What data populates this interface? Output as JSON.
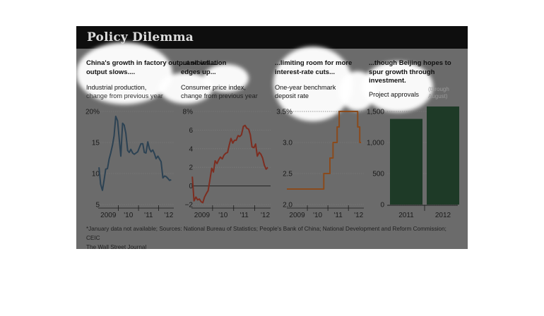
{
  "title": "Policy Dilemma",
  "source_note": "*January data not available; Sources: National Bureau of Statistics; People's Bank of China; National Development and Reform Commission; CEIC",
  "publisher": "The Wall Street Journal",
  "colors": {
    "panel_bg": "#6b6b6b",
    "title_bar": "#0e0e0e",
    "industrial_line": "#2c4253",
    "cpi_line": "#7d2d20",
    "rate_line": "#8a4a1c",
    "approvals_bar": "#1e3a27",
    "highlight": "#ffffff"
  },
  "chart_data": [
    {
      "type": "line",
      "heading": "China's growth in factory output slows....",
      "subtitle_line1": "Industrial production,",
      "subtitle_line2": "change from previous year",
      "ytick_labels": [
        "20%",
        "15",
        "10",
        "5"
      ],
      "yticks": [
        20,
        15,
        10,
        5
      ],
      "ylim": [
        5,
        20
      ],
      "xtick_labels": [
        "2009",
        "'10",
        "'11",
        "'12"
      ],
      "xtick_positions": [
        2009.5,
        2010.5,
        2011.5,
        2012.5
      ],
      "xlim": [
        2009,
        2012.75
      ],
      "grid": true,
      "series": [
        {
          "x": [
            2009.04,
            2009.12,
            2009.21,
            2009.29,
            2009.37,
            2009.46,
            2009.54,
            2009.62,
            2009.71,
            2009.79,
            2009.87,
            2009.96,
            2010.12,
            2010.21,
            2010.29,
            2010.37,
            2010.46,
            2010.54,
            2010.62,
            2010.71,
            2010.79,
            2010.87,
            2010.96,
            2011.12,
            2011.21,
            2011.29,
            2011.37,
            2011.46,
            2011.54,
            2011.62,
            2011.71,
            2011.79,
            2011.87,
            2011.96,
            2012.12,
            2012.21,
            2012.29,
            2012.37,
            2012.46,
            2012.54,
            2012.62
          ],
          "y": [
            11.0,
            8.3,
            7.3,
            8.9,
            10.7,
            10.8,
            12.3,
            13.3,
            14.6,
            16.1,
            19.2,
            18.5,
            12.8,
            18.1,
            17.8,
            16.5,
            13.7,
            13.4,
            13.9,
            13.3,
            13.1,
            13.3,
            13.5,
            14.8,
            14.8,
            13.4,
            13.3,
            15.1,
            14.0,
            13.5,
            13.8,
            13.2,
            12.4,
            12.8,
            11.9,
            9.3,
            9.6,
            9.5,
            9.2,
            8.9,
            9.0
          ]
        }
      ]
    },
    {
      "type": "line",
      "heading_line1": "...and inflation",
      "heading_line2": "edges up...",
      "subtitle_line1": "Consumer price index,",
      "subtitle_line2": "change from previous year",
      "ytick_labels": [
        "8%",
        "6",
        "4",
        "2",
        "0",
        "−2"
      ],
      "yticks": [
        8,
        6,
        4,
        2,
        0,
        -2
      ],
      "ylim": [
        -2,
        8
      ],
      "xtick_labels": [
        "2009",
        "'10",
        "'11",
        "'12"
      ],
      "xtick_positions": [
        2009.5,
        2010.5,
        2011.5,
        2012.5
      ],
      "xlim": [
        2009,
        2012.75
      ],
      "grid": true,
      "series": [
        {
          "x": [
            2009.04,
            2009.12,
            2009.21,
            2009.29,
            2009.37,
            2009.46,
            2009.54,
            2009.62,
            2009.71,
            2009.79,
            2009.87,
            2009.96,
            2010.04,
            2010.12,
            2010.21,
            2010.29,
            2010.37,
            2010.46,
            2010.54,
            2010.62,
            2010.71,
            2010.79,
            2010.87,
            2010.96,
            2011.04,
            2011.12,
            2011.21,
            2011.29,
            2011.37,
            2011.46,
            2011.54,
            2011.62,
            2011.71,
            2011.79,
            2011.87,
            2011.96,
            2012.04,
            2012.12,
            2012.21,
            2012.29,
            2012.37,
            2012.46,
            2012.54,
            2012.62
          ],
          "y": [
            1.0,
            -1.6,
            -1.2,
            -1.5,
            -1.4,
            -1.7,
            -1.8,
            -1.2,
            -0.8,
            -0.5,
            0.6,
            1.9,
            1.5,
            2.7,
            2.4,
            2.8,
            3.1,
            2.9,
            3.3,
            3.5,
            3.6,
            4.4,
            5.1,
            4.6,
            4.9,
            4.9,
            5.4,
            5.3,
            5.5,
            6.4,
            6.5,
            6.2,
            6.1,
            5.5,
            4.2,
            4.1,
            4.5,
            3.2,
            3.6,
            3.4,
            3.0,
            2.2,
            1.8,
            2.0
          ]
        }
      ]
    },
    {
      "type": "line",
      "heading_line1": "...limiting room for more",
      "heading_line2": "interest-rate cuts...",
      "subtitle_line1": "One-year benchmark",
      "subtitle_line2": "deposit rate",
      "ytick_labels": [
        "3.5%",
        "3.0",
        "2.5",
        "2.0"
      ],
      "yticks": [
        3.5,
        3.0,
        2.5,
        2.0
      ],
      "ylim": [
        2.0,
        3.5
      ],
      "xtick_labels": [
        "2009",
        "'10",
        "'11",
        "'12"
      ],
      "xtick_positions": [
        2009.5,
        2010.5,
        2011.5,
        2012.5
      ],
      "xlim": [
        2009,
        2012.75
      ],
      "grid": true,
      "series": [
        {
          "step": true,
          "x": [
            2009.0,
            2010.8,
            2010.8,
            2011.1,
            2011.1,
            2011.25,
            2011.25,
            2011.45,
            2011.45,
            2011.55,
            2011.55,
            2012.45,
            2012.45,
            2012.55,
            2012.55,
            2012.62
          ],
          "y": [
            2.25,
            2.25,
            2.5,
            2.5,
            2.75,
            2.75,
            3.0,
            3.0,
            3.25,
            3.25,
            3.5,
            3.5,
            3.25,
            3.25,
            3.0,
            3.0
          ]
        }
      ]
    },
    {
      "type": "bar",
      "heading_line1": "...though Beijing hopes to",
      "heading_line2": "spur growth through",
      "heading_line3": "investment.",
      "subtitle": "Project approvals",
      "note_line1": "(through",
      "note_line2": "August)",
      "categories": [
        "2011",
        "2012"
      ],
      "values": [
        1380,
        1580
      ],
      "ytick_labels": [
        "1,500",
        "1,000",
        "500",
        "0"
      ],
      "yticks": [
        1500,
        1000,
        500,
        0
      ],
      "ylim": [
        0,
        1500
      ],
      "grid": true
    }
  ]
}
